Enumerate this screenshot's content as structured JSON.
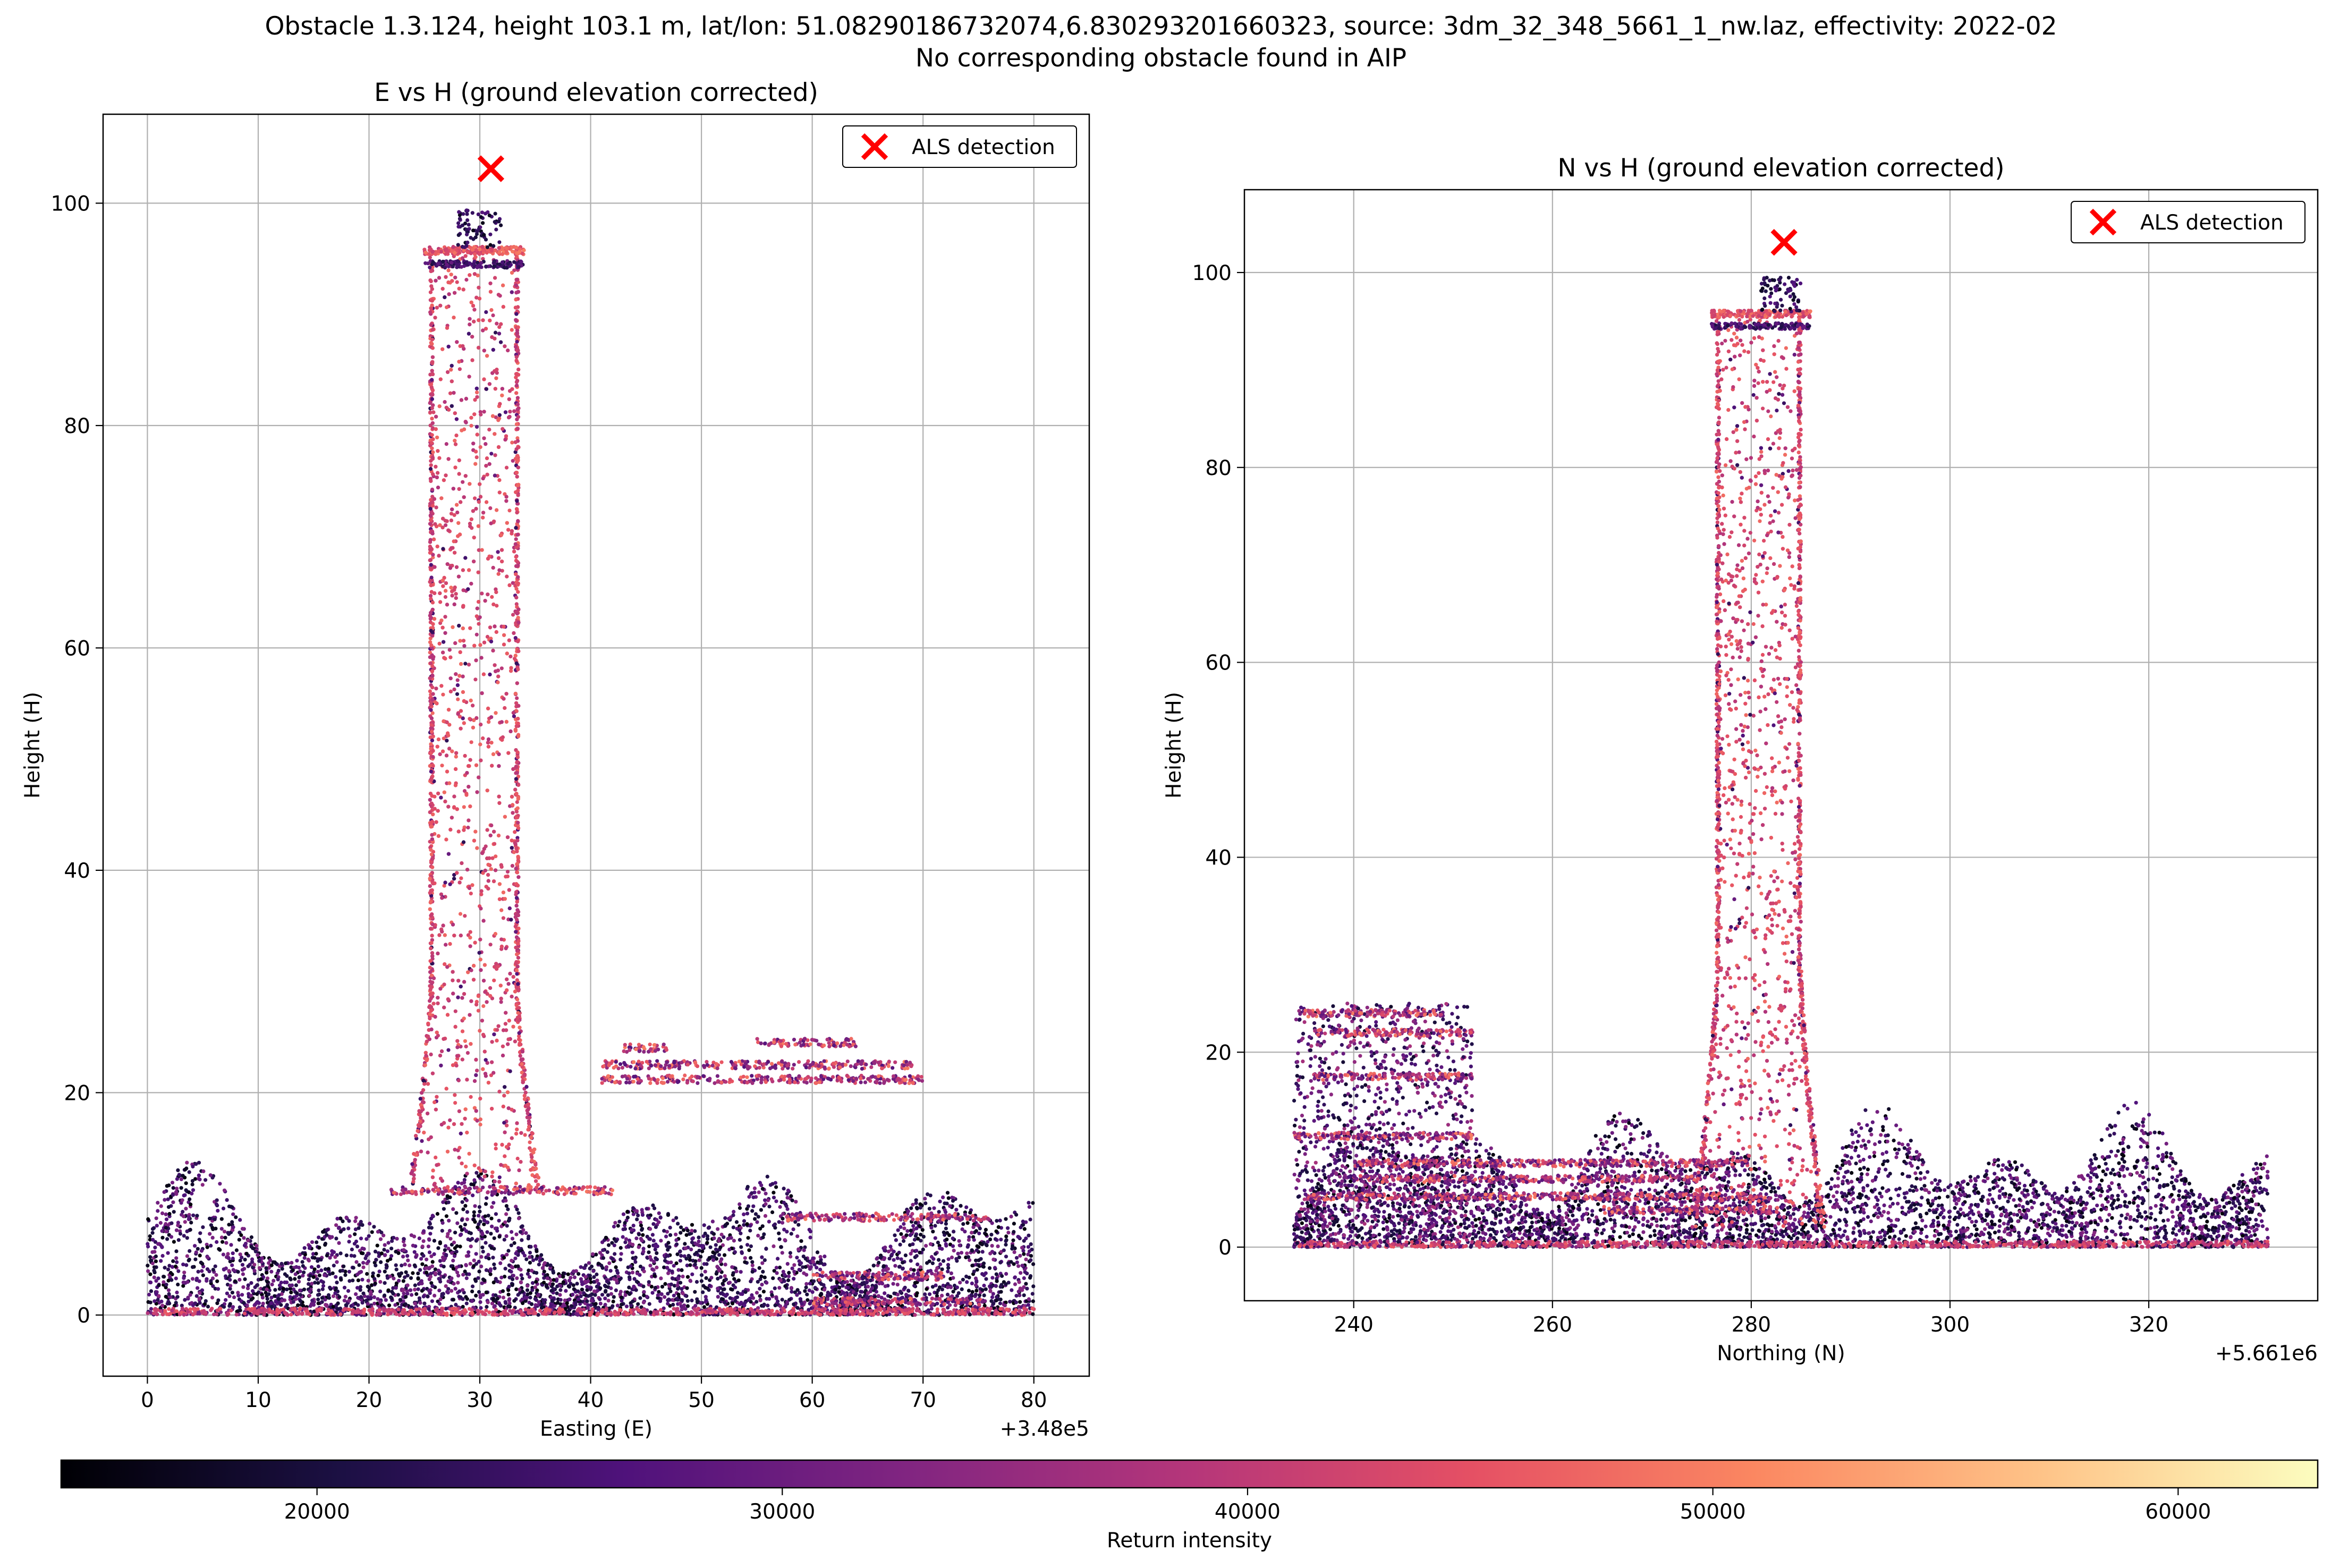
{
  "figure": {
    "suptitle_line1": "Obstacle 1.3.124, height 103.1 m, lat/lon: 51.08290186732074,6.830293201660323, source: 3dm_32_348_5661_1_nw.laz, effectivity: 2022-02",
    "suptitle_line2": "No corresponding obstacle found in AIP"
  },
  "colorbar": {
    "label": "Return intensity",
    "range": [
      14500,
      63000
    ],
    "ticks": [
      20000,
      30000,
      40000,
      50000,
      60000
    ],
    "tick_labels": [
      "20000",
      "30000",
      "40000",
      "50000",
      "60000"
    ],
    "colormap": "magma",
    "colormap_stops": [
      "#000004",
      "#1c1044",
      "#4f127b",
      "#812581",
      "#b5367a",
      "#e55064",
      "#fb8761",
      "#fec287",
      "#fcfdbf"
    ]
  },
  "chart_data": [
    {
      "type": "scatter",
      "title": "E vs H (ground elevation corrected)",
      "xlabel": "Easting (E)",
      "ylabel": "Height (H)",
      "x_offset_label": "+3.48e5",
      "xlim": [
        -4,
        85
      ],
      "ylim": [
        -5.5,
        108
      ],
      "xticks": [
        0,
        10,
        20,
        30,
        40,
        50,
        60,
        70,
        80
      ],
      "xtick_labels": [
        "0",
        "10",
        "20",
        "30",
        "40",
        "50",
        "60",
        "70",
        "80"
      ],
      "yticks": [
        0,
        20,
        40,
        60,
        80,
        100
      ],
      "ytick_labels": [
        "0",
        "20",
        "40",
        "60",
        "80",
        "100"
      ],
      "grid": true,
      "legend": {
        "label": "ALS detection",
        "position": "top-right"
      },
      "detection": {
        "x": 31,
        "y": 103.1,
        "marker": "x",
        "color": "#ff0000"
      },
      "structures": {
        "ground": {
          "x_range": [
            0,
            80
          ],
          "h_range": [
            0,
            12
          ],
          "intensity_range": [
            15000,
            34000
          ]
        },
        "tower": {
          "base_x": [
            23.5,
            35.5
          ],
          "base_y": 11,
          "top_x": [
            25.5,
            33.5
          ],
          "top_y": 96,
          "intensity": 43000
        },
        "tower_top_platform": {
          "x_range": [
            25,
            34
          ],
          "y": 95.8,
          "intensity": 44000
        },
        "antenna_mast": {
          "x_range": [
            28,
            32
          ],
          "h_range": [
            96,
            99.5
          ],
          "intensity": 20000
        },
        "roof_lines": [
          {
            "x_range": [
              41,
              69
            ],
            "y": 22.5
          },
          {
            "x_range": [
              43,
              47
            ],
            "y": 24
          },
          {
            "x_range": [
              55,
              64
            ],
            "y": 24.5
          },
          {
            "x_range": [
              41,
              70
            ],
            "y": 21.2
          },
          {
            "x_range": [
              57,
              76
            ],
            "y": 8.8
          },
          {
            "x_range": [
              22,
              42
            ],
            "y": 11.2
          },
          {
            "x_range": [
              60,
              72
            ],
            "y": 3.5
          },
          {
            "x_range": [
              60,
              76
            ],
            "y": 1.2
          }
        ]
      }
    },
    {
      "type": "scatter",
      "title": "N vs H (ground elevation corrected)",
      "xlabel": "Northing (N)",
      "ylabel": "Height (H)",
      "x_offset_label": "+5.661e6",
      "xlim": [
        229,
        337
      ],
      "ylim": [
        -5.5,
        108.5
      ],
      "xticks": [
        240,
        260,
        280,
        300,
        320
      ],
      "xtick_labels": [
        "240",
        "260",
        "280",
        "300",
        "320"
      ],
      "yticks": [
        0,
        20,
        40,
        60,
        80,
        100
      ],
      "ytick_labels": [
        "0",
        "20",
        "40",
        "60",
        "80",
        "100"
      ],
      "grid": true,
      "legend": {
        "label": "ALS detection",
        "position": "top-right"
      },
      "detection": {
        "x": 283.3,
        "y": 103.1,
        "marker": "x",
        "color": "#ff0000"
      },
      "structures": {
        "ground": {
          "x_range": [
            234,
            332
          ],
          "h_range": [
            0,
            13
          ],
          "intensity_range": [
            15000,
            34000
          ]
        },
        "tower": {
          "base_x": [
            274.5,
            288
          ],
          "base_y": 2,
          "top_x": [
            276.5,
            285
          ],
          "top_y": 96,
          "intensity": 43000
        },
        "tower_top_platform": {
          "x_range": [
            276,
            286
          ],
          "y": 95.8,
          "intensity": 44000
        },
        "antenna_mast": {
          "x_range": [
            281,
            285
          ],
          "h_range": [
            96,
            99.5
          ],
          "intensity": 20000
        },
        "building": {
          "x_range": [
            234,
            252
          ],
          "h_range": [
            0,
            25
          ],
          "intensity": 28000
        },
        "roof_lines": [
          {
            "x_range": [
              235,
              249
            ],
            "y": 24
          },
          {
            "x_range": [
              234,
              252
            ],
            "y": 11.4
          },
          {
            "x_range": [
              240,
              280
            ],
            "y": 8.6
          },
          {
            "x_range": [
              240,
              275
            ],
            "y": 7
          },
          {
            "x_range": [
              235,
              282
            ],
            "y": 5.2
          },
          {
            "x_range": [
              265,
              282
            ],
            "y": 3.8
          },
          {
            "x_range": [
              236,
              252
            ],
            "y": 22
          },
          {
            "x_range": [
              236,
              252
            ],
            "y": 17.5
          }
        ]
      }
    }
  ]
}
